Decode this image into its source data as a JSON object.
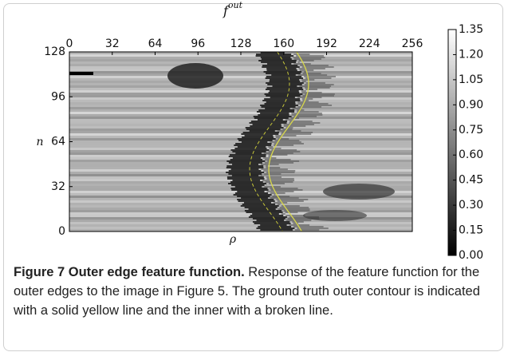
{
  "figure": {
    "chart_data": {
      "type": "heatmap",
      "top_label": "f",
      "top_label_sup": "out",
      "y_label": "n",
      "bottom_label": "ρ",
      "xlim": [
        0,
        256
      ],
      "xticks": [
        0,
        32,
        64,
        96,
        128,
        160,
        192,
        224,
        256
      ],
      "ylim": [
        0,
        128
      ],
      "yticks": [
        0,
        32,
        64,
        96,
        128
      ],
      "colorbar_lim": [
        0,
        1.35
      ],
      "colorbar_ticks": [
        {
          "value": 0,
          "label": "0.00"
        },
        0.15,
        {
          "value": 0.3,
          "label": "0.30"
        },
        0.45,
        {
          "value": 0.6,
          "label": "0.60"
        },
        0.75,
        {
          "value": 0.9,
          "label": "0.90"
        },
        1.05,
        {
          "value": 1.2,
          "label": "1.20"
        },
        1.35
      ]
    },
    "caption": {
      "label": "Figure 7 Outer edge feature function.",
      "text": "Response of the feature function for the outer edges to the image in Figure 5. The ground truth outer contour is indicated with a solid yellow line and the inner with a broken line."
    }
  }
}
